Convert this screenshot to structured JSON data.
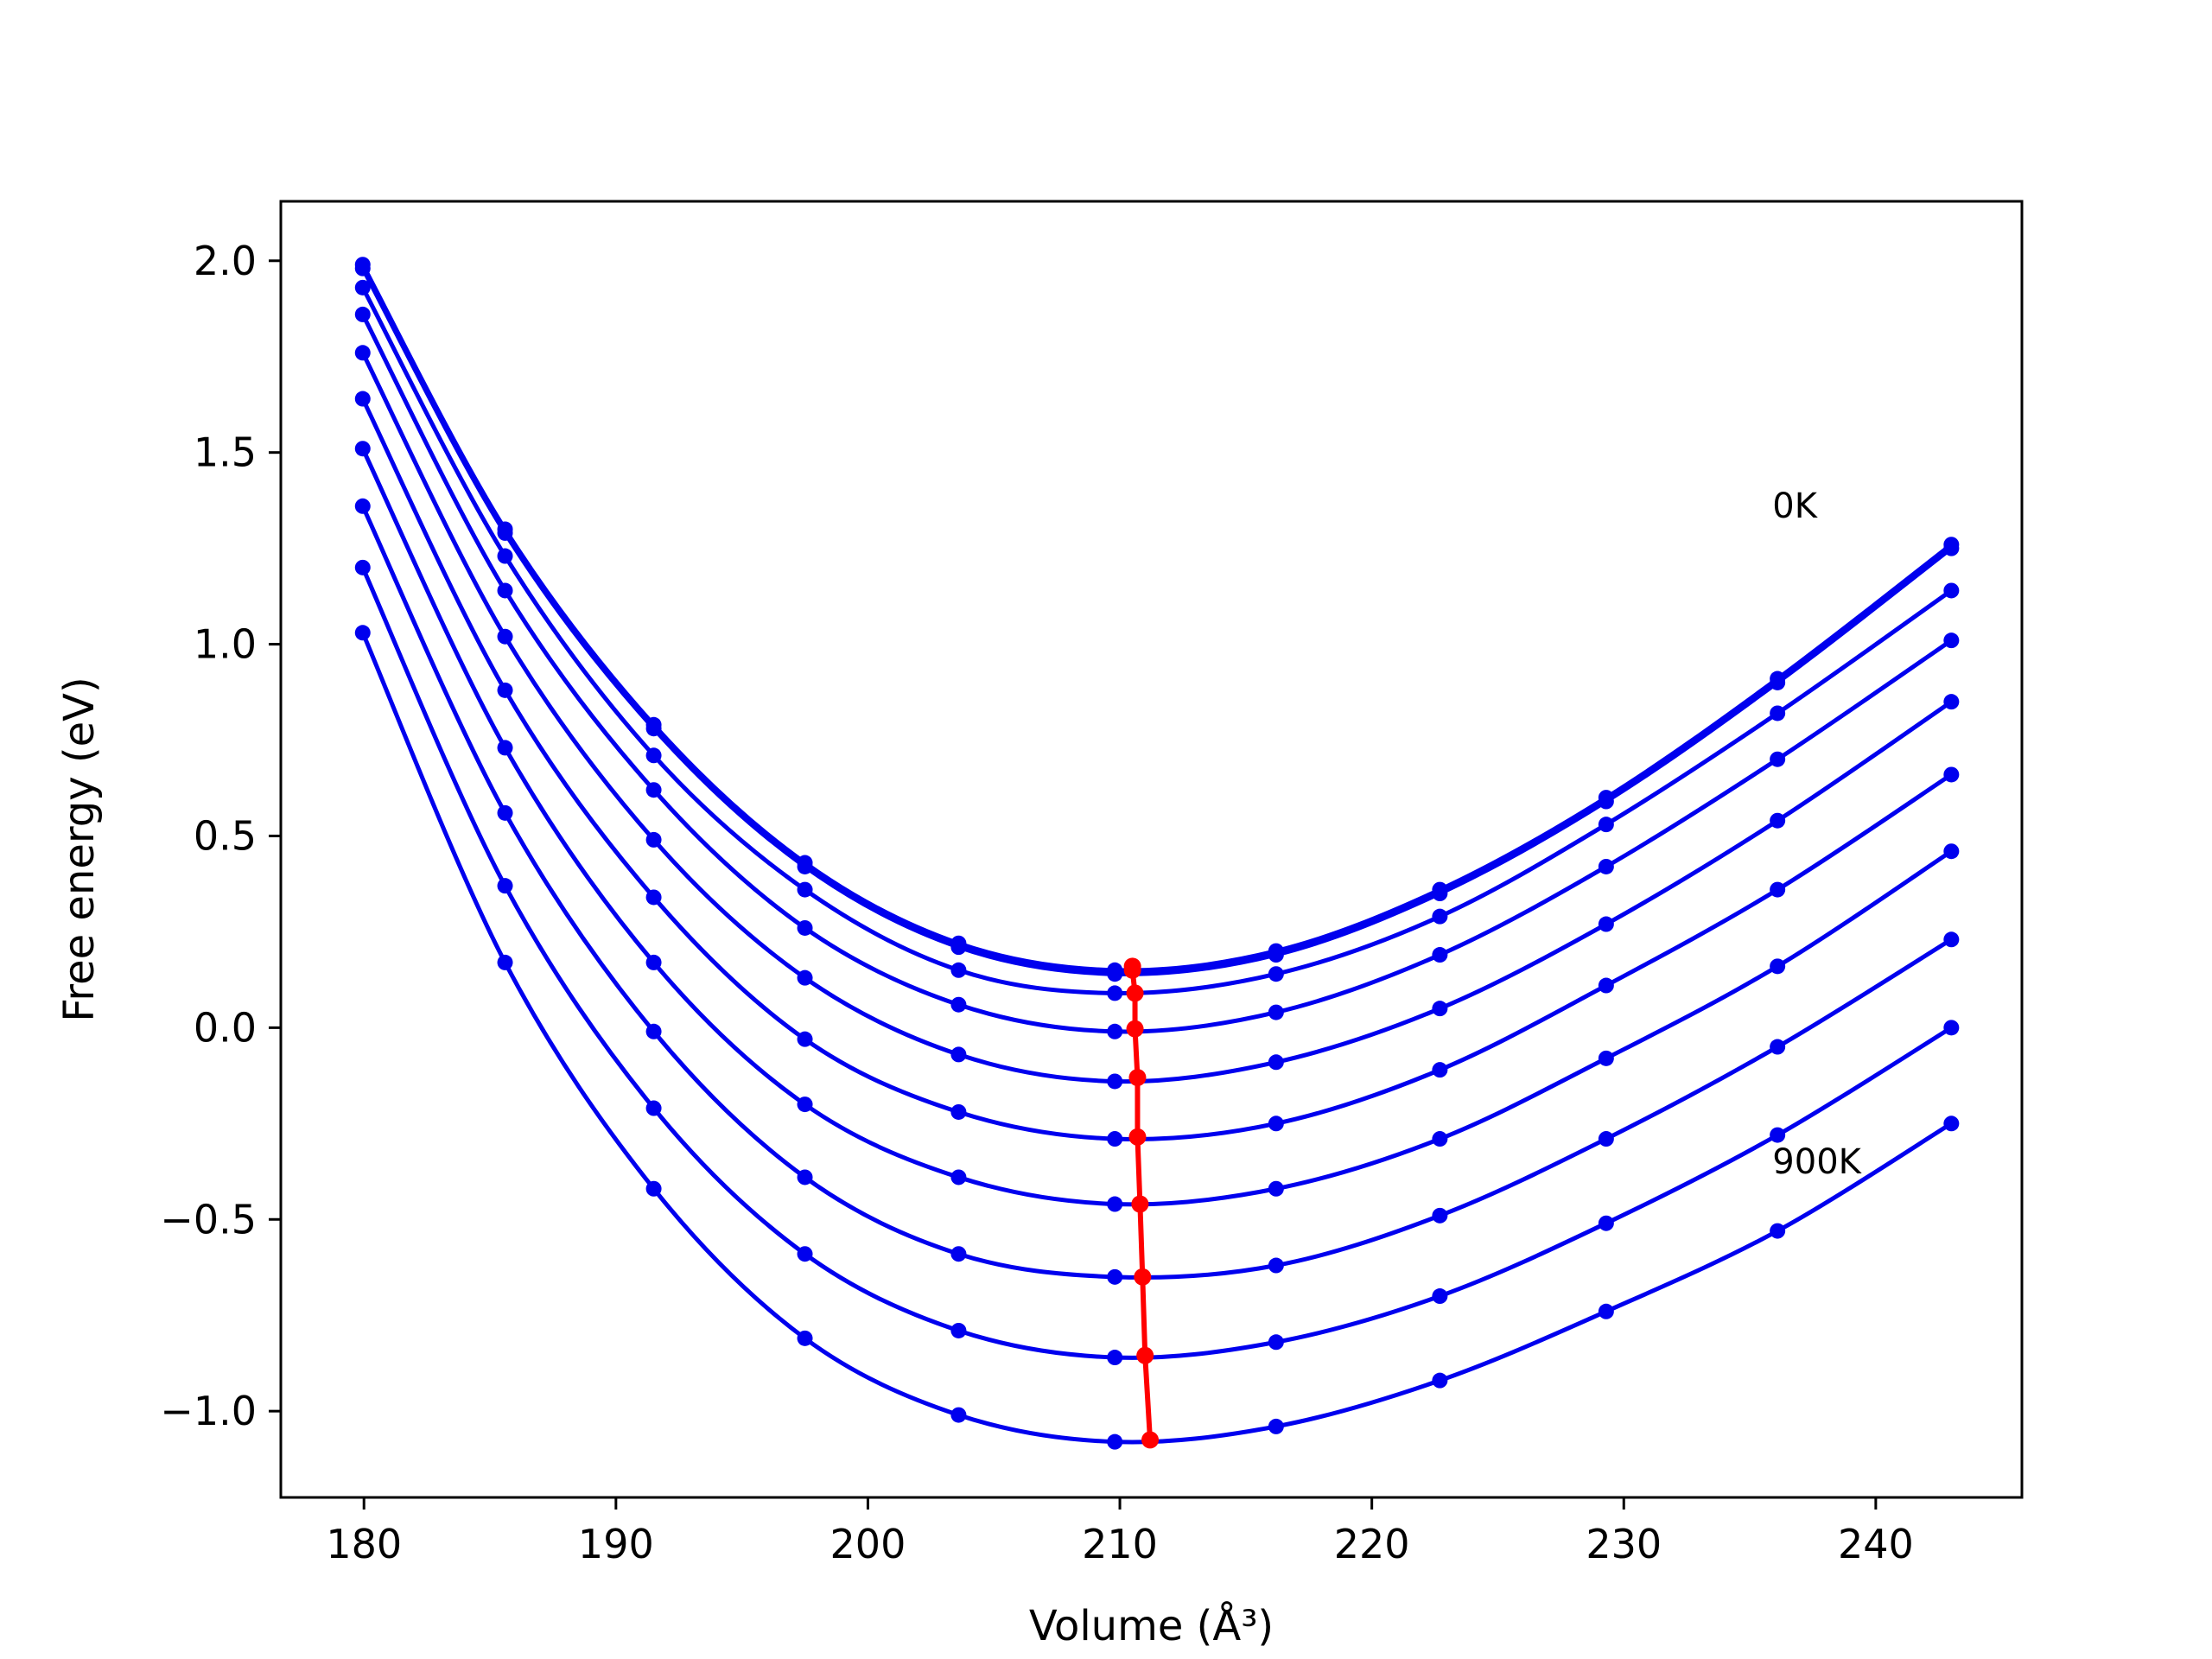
{
  "chart_data": {
    "type": "line",
    "xlabel": "Volume (Å³)",
    "ylabel": "Free energy (eV)",
    "xlim": [
      176.7,
      245.8
    ],
    "ylim": [
      -1.225,
      2.155
    ],
    "xticks": [
      180,
      190,
      200,
      210,
      220,
      230,
      240
    ],
    "yticks": [
      2.0,
      1.5,
      1.0,
      0.5,
      0.0,
      -0.5,
      -1.0
    ],
    "ytick_labels": [
      "2.0",
      "1.5",
      "1.0",
      "0.5",
      "0.0",
      "−0.5",
      "−1.0"
    ],
    "grid": false,
    "annotations": [
      {
        "text": "0K",
        "x": 235.9,
        "y": 1.33
      },
      {
        "text": "900K",
        "x": 235.9,
        "y": -0.38
      }
    ],
    "colors": {
      "curves": "#0000ee",
      "minima": "#ff0000"
    },
    "x_points": [
      179.95,
      185.6,
      191.5,
      197.5,
      203.6,
      209.8,
      216.2,
      222.7,
      229.3,
      236.1,
      243.0
    ],
    "series": [
      {
        "values": [
          1.99,
          1.3,
          0.79,
          0.43,
          0.22,
          0.15,
          0.2,
          0.36,
          0.6,
          0.91,
          1.26
        ],
        "vmin": 210.5,
        "fmin": 0.16
      },
      {
        "values": [
          1.98,
          1.29,
          0.78,
          0.42,
          0.21,
          0.14,
          0.19,
          0.35,
          0.59,
          0.9,
          1.25
        ],
        "vmin": 210.5,
        "fmin": 0.15
      },
      {
        "values": [
          1.93,
          1.23,
          0.71,
          0.36,
          0.15,
          0.09,
          0.14,
          0.29,
          0.53,
          0.82,
          1.14
        ],
        "vmin": 210.6,
        "fmin": 0.09
      },
      {
        "values": [
          1.86,
          1.14,
          0.62,
          0.26,
          0.06,
          -0.01,
          0.04,
          0.19,
          0.42,
          0.7,
          1.01
        ],
        "vmin": 210.6,
        "fmin": -0.003
      },
      {
        "values": [
          1.76,
          1.02,
          0.49,
          0.13,
          -0.07,
          -0.14,
          -0.09,
          0.05,
          0.27,
          0.54,
          0.85
        ],
        "vmin": 210.7,
        "fmin": -0.13
      },
      {
        "values": [
          1.64,
          0.88,
          0.34,
          -0.03,
          -0.22,
          -0.29,
          -0.25,
          -0.11,
          0.11,
          0.36,
          0.66
        ],
        "vmin": 210.7,
        "fmin": -0.285
      },
      {
        "values": [
          1.51,
          0.73,
          0.17,
          -0.2,
          -0.39,
          -0.46,
          -0.42,
          -0.29,
          -0.08,
          0.16,
          0.46
        ],
        "vmin": 210.8,
        "fmin": -0.46
      },
      {
        "values": [
          1.36,
          0.56,
          -0.01,
          -0.39,
          -0.59,
          -0.65,
          -0.62,
          -0.49,
          -0.29,
          -0.05,
          0.23
        ],
        "vmin": 210.9,
        "fmin": -0.65
      },
      {
        "values": [
          1.2,
          0.37,
          -0.21,
          -0.59,
          -0.79,
          -0.86,
          -0.82,
          -0.7,
          -0.51,
          -0.28,
          0.0
        ],
        "vmin": 211.0,
        "fmin": -0.855
      },
      {
        "values": [
          1.03,
          0.17,
          -0.42,
          -0.81,
          -1.01,
          -1.08,
          -1.04,
          -0.92,
          -0.74,
          -0.53,
          -0.25
        ],
        "vmin": 211.2,
        "fmin": -1.075
      }
    ]
  }
}
